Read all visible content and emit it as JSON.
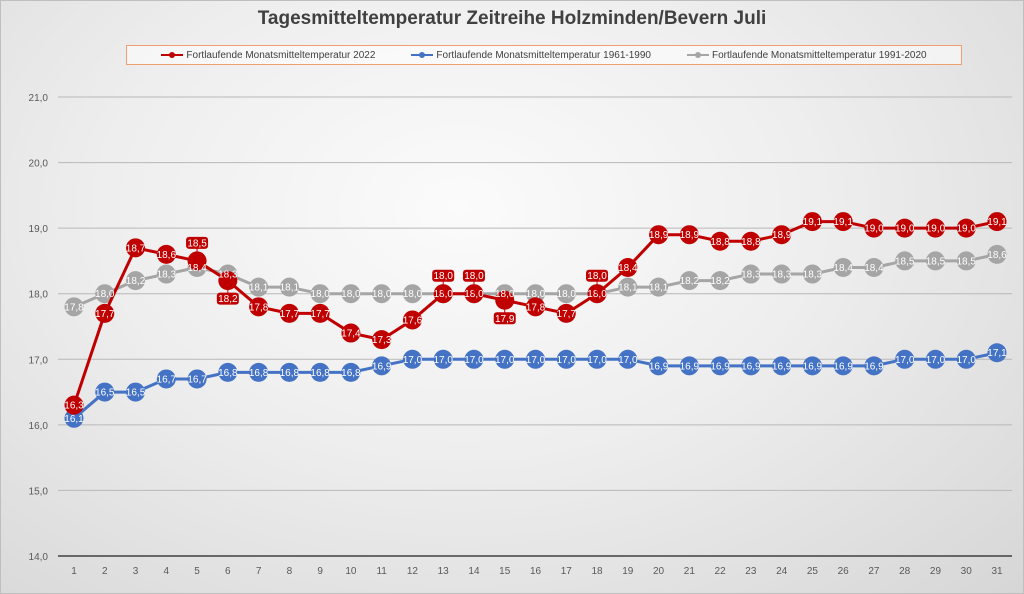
{
  "chart_data": {
    "type": "line",
    "title": "Tagesmitteltemperatur Zeitreihe Holzminden/Bevern Juli",
    "xlabel": "",
    "ylabel": "",
    "x": [
      1,
      2,
      3,
      4,
      5,
      6,
      7,
      8,
      9,
      10,
      11,
      12,
      13,
      14,
      15,
      16,
      17,
      18,
      19,
      20,
      21,
      22,
      23,
      24,
      25,
      26,
      27,
      28,
      29,
      30,
      31
    ],
    "ylim": [
      14.0,
      21.0
    ],
    "yticks": [
      "14,0",
      "15,0",
      "16,0",
      "17,0",
      "18,0",
      "19,0",
      "20,0",
      "21,0"
    ],
    "grid": true,
    "legend_position": "top",
    "series": [
      {
        "name": "Fortlaufende Monatsmitteltemperatur 2022",
        "color": "#c00000",
        "values": [
          16.3,
          17.7,
          18.7,
          18.6,
          18.5,
          18.2,
          17.8,
          17.7,
          17.7,
          17.4,
          17.3,
          17.6,
          18.0,
          18.0,
          17.9,
          17.8,
          17.7,
          18.0,
          18.4,
          18.9,
          18.9,
          18.8,
          18.8,
          18.9,
          19.1,
          19.1,
          19.0,
          19.0,
          19.0,
          19.0,
          19.1
        ]
      },
      {
        "name": "Fortlaufende Monatsmitteltemperatur 1961-1990",
        "color": "#4472c4",
        "values": [
          16.1,
          16.5,
          16.5,
          16.7,
          16.7,
          16.8,
          16.8,
          16.8,
          16.8,
          16.8,
          16.9,
          17.0,
          17.0,
          17.0,
          17.0,
          17.0,
          17.0,
          17.0,
          17.0,
          16.9,
          16.9,
          16.9,
          16.9,
          16.9,
          16.9,
          16.9,
          16.9,
          17.0,
          17.0,
          17.0,
          17.1
        ]
      },
      {
        "name": "Fortlaufende Monatsmitteltemperatur 1991-2020",
        "color": "#a5a5a5",
        "values": [
          17.8,
          18.0,
          18.2,
          18.3,
          18.4,
          18.3,
          18.1,
          18.1,
          18.0,
          18.0,
          18.0,
          18.0,
          18.0,
          18.0,
          18.0,
          18.0,
          18.0,
          18.0,
          18.1,
          18.1,
          18.2,
          18.2,
          18.3,
          18.3,
          18.3,
          18.4,
          18.4,
          18.5,
          18.5,
          18.5,
          18.6
        ]
      }
    ]
  }
}
